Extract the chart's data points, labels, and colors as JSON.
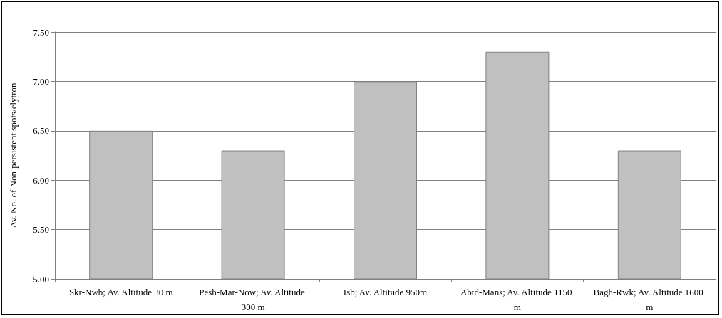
{
  "chart_data": {
    "type": "bar",
    "ylabel": "Av. No. of Non-persistent spots/elytron",
    "categories": [
      "Skr-Nwb; Av. Altitude 30 m",
      "Pesh-Mar-Now; Av. Altitude 300 m",
      "Isb; Av. Altitude 950m",
      "Abtd-Mans; Av. Altitude 1150 m",
      "Bagh-Rwk; Av. Altitude 1600 m"
    ],
    "values": [
      6.5,
      6.3,
      7.0,
      7.3,
      6.3
    ],
    "color": "#c0c0c0",
    "ylim": [
      5,
      7.5
    ],
    "yticks": [
      {
        "value": 5,
        "label": "5.00"
      },
      {
        "value": 5.5,
        "label": "5.50"
      },
      {
        "value": 6,
        "label": "6.00"
      },
      {
        "value": 6.5,
        "label": "6.50"
      },
      {
        "value": 7,
        "label": "7.00"
      },
      {
        "value": 7.5,
        "label": "7.50"
      }
    ],
    "grid": "y"
  }
}
